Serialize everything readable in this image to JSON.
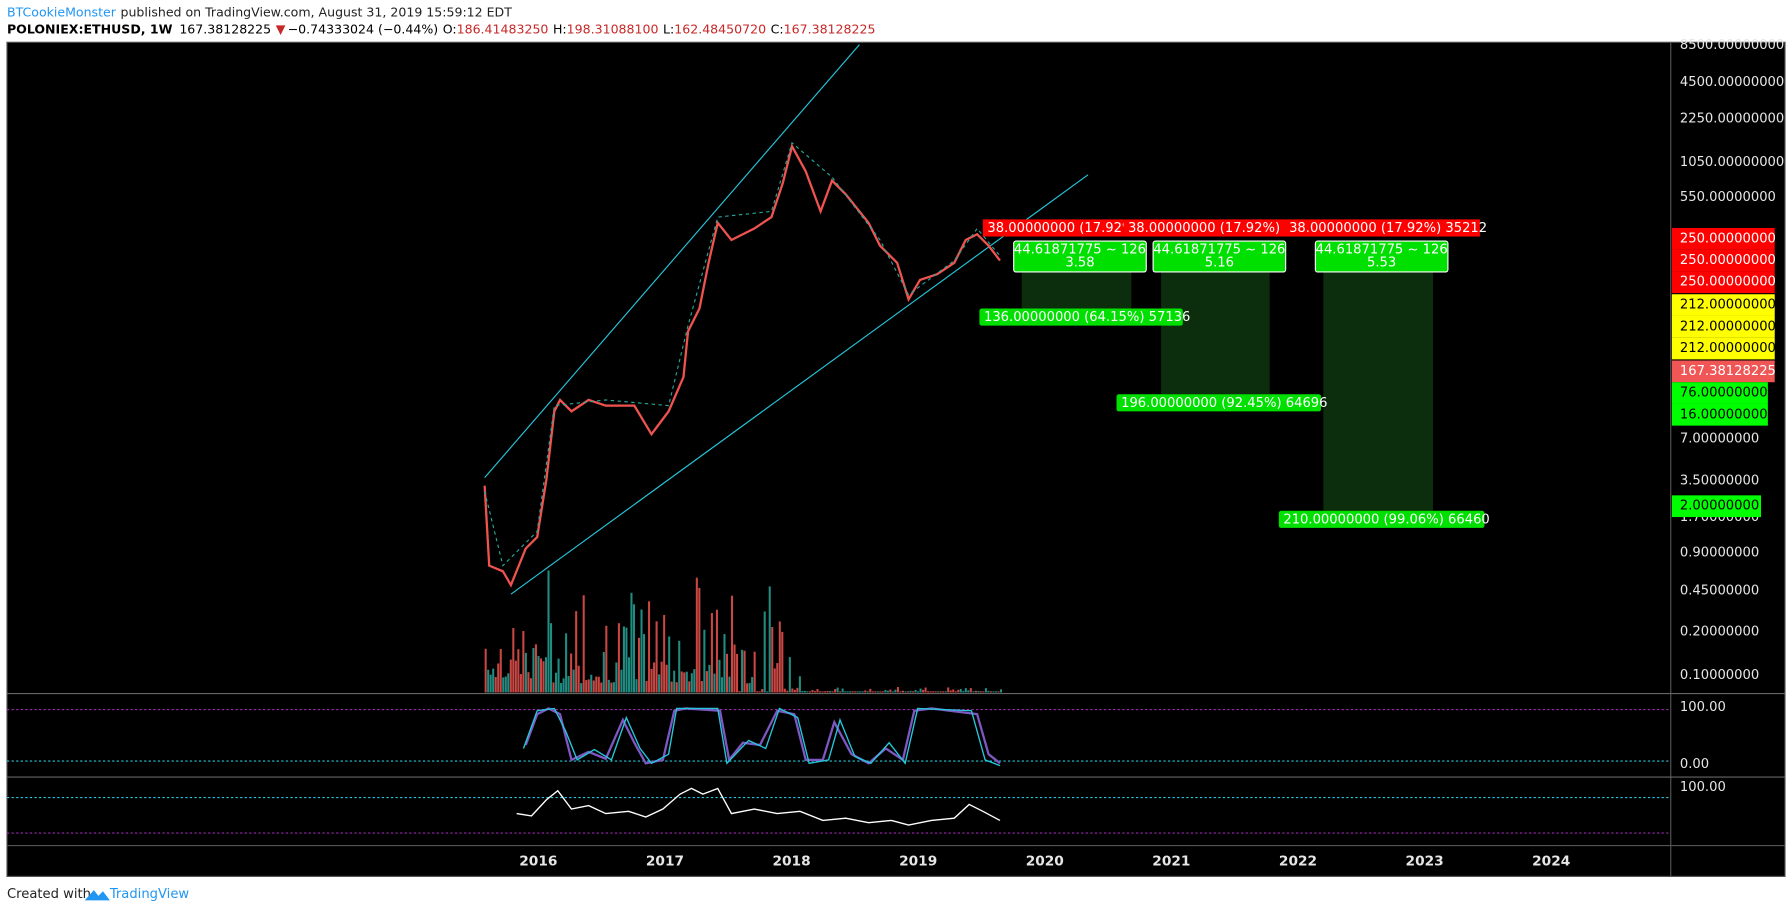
{
  "header": {
    "author": "BTCookieMonster",
    "published": "published on TradingView.com, August 31, 2019 15:59:12 EDT",
    "symbol": "POLONIEX:ETHUSD, 1W",
    "last": "167.38128225",
    "change": "−0.74333024 (−0.44%)",
    "o_label": "O:",
    "o": "186.41483250",
    "h_label": "H:",
    "h": "198.31088100",
    "l_label": "L:",
    "l": "162.48450720",
    "c_label": "C:",
    "c": "167.38128225"
  },
  "price_axis": [
    "8500.00000000",
    "4500.00000000",
    "2250.00000000",
    "1050.00000000",
    "550.00000000",
    "7.00000000",
    "3.50000000",
    "1.70000000",
    "0.90000000",
    "0.45000000",
    "0.20000000",
    "0.10000000"
  ],
  "price_badges": [
    "250.00000000",
    "250.00000000",
    "250.00000000",
    "212.00000000",
    "212.00000000",
    "212.00000000",
    "167.38128225",
    "76.00000000",
    "16.00000000",
    "2.00000000"
  ],
  "stoch_axis": [
    "100.00",
    "0.00"
  ],
  "rsi_axis": [
    "100.00"
  ],
  "time_axis": [
    "2016",
    "2017",
    "2018",
    "2019",
    "2020",
    "2021",
    "2022",
    "2023",
    "2024"
  ],
  "positions": [
    {
      "stop": "38.00000000 (17.92%",
      "entry": "44.61871775 ~ 126",
      "ratio": "3.58",
      "target": "136.00000000 (64.15%) 57136"
    },
    {
      "stop": "38.00000000 (17.92%) 3",
      "entry": "44.61871775 ~ 126",
      "ratio": "5.16",
      "target": "196.00000000 (92.45%) 64696"
    },
    {
      "stop": "38.00000000 (17.92%) 35212",
      "entry": "44.61871775 ~ 126",
      "ratio": "5.53",
      "target": "210.00000000 (99.06%) 66460"
    }
  ],
  "footer": {
    "created": "Created with",
    "brand": "TradingView"
  }
}
